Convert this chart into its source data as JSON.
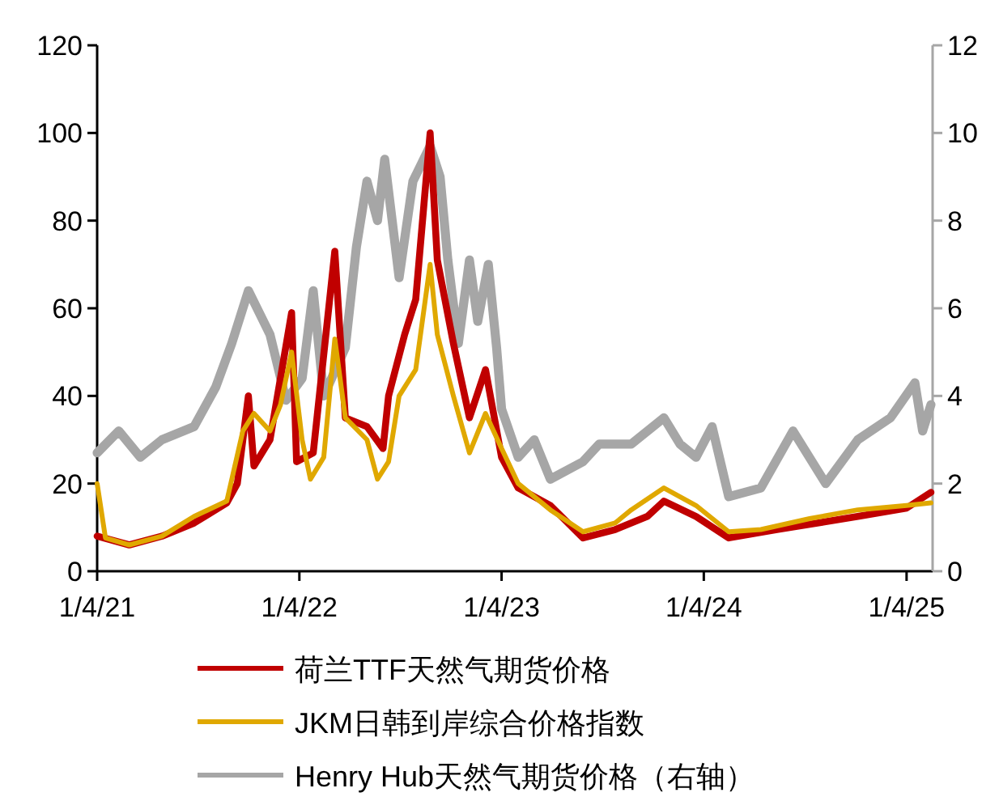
{
  "chart_data": {
    "type": "line",
    "xlim": [
      "2021-01-04",
      "2025-02-20"
    ],
    "xticks": [
      {
        "value": "2021-01-04",
        "label": "1/4/21"
      },
      {
        "value": "2022-01-04",
        "label": "1/4/22"
      },
      {
        "value": "2023-01-04",
        "label": "1/4/23"
      },
      {
        "value": "2024-01-04",
        "label": "1/4/24"
      },
      {
        "value": "2025-01-04",
        "label": "1/4/25"
      }
    ],
    "ylim": [
      0,
      120
    ],
    "yticks": [
      0,
      20,
      40,
      60,
      80,
      100,
      120
    ],
    "y2lim": [
      0,
      12
    ],
    "y2ticks": [
      0,
      2,
      4,
      6,
      8,
      10,
      12
    ],
    "grid": false,
    "legend": "bottom",
    "marker": "none",
    "line_style": "solid",
    "series": [
      {
        "name": "荷兰TTF天然气期货价格",
        "color": "#c00000",
        "x": [
          "2021-01-04",
          "2021-03-03",
          "2021-05-01",
          "2021-06-28",
          "2021-08-26",
          "2021-09-14",
          "2021-10-04",
          "2021-10-14",
          "2021-11-12",
          "2021-12-21",
          "2021-12-30",
          "2022-01-29",
          "2022-03-09",
          "2022-03-28",
          "2022-05-06",
          "2022-06-04",
          "2022-06-14",
          "2022-07-13",
          "2022-08-02",
          "2022-08-28",
          "2022-09-10",
          "2022-10-09",
          "2022-11-07",
          "2022-12-06",
          "2023-01-04",
          "2023-02-03",
          "2023-04-02",
          "2023-05-31",
          "2023-07-28",
          "2023-09-24",
          "2023-10-24",
          "2023-12-21",
          "2024-02-18",
          "2024-05-15",
          "2024-07-13",
          "2024-10-08",
          "2025-01-04",
          "2025-02-17"
        ],
        "values": [
          8,
          6,
          8,
          11,
          15.6,
          20,
          40,
          24,
          30,
          59,
          25,
          27,
          73,
          35,
          33,
          28,
          40,
          54,
          62,
          100,
          71,
          52,
          35,
          46,
          26,
          19,
          15,
          7.6,
          9.5,
          12.5,
          16,
          12.5,
          7.6,
          9.5,
          10.7,
          12.5,
          14.4,
          18
        ]
      },
      {
        "name": "JKM日韩到岸综合价格指数",
        "color": "#e0a800",
        "x": [
          "2021-01-04",
          "2021-01-19",
          "2021-03-03",
          "2021-05-01",
          "2021-06-28",
          "2021-08-26",
          "2021-09-24",
          "2021-10-14",
          "2021-11-12",
          "2021-12-01",
          "2021-12-21",
          "2022-01-09",
          "2022-01-24",
          "2022-02-17",
          "2022-03-09",
          "2022-03-28",
          "2022-05-06",
          "2022-05-25",
          "2022-06-14",
          "2022-07-03",
          "2022-08-02",
          "2022-08-28",
          "2022-09-10",
          "2022-10-09",
          "2022-11-07",
          "2022-12-06",
          "2023-01-04",
          "2023-02-03",
          "2023-04-02",
          "2023-05-31",
          "2023-07-28",
          "2023-08-26",
          "2023-10-24",
          "2023-12-21",
          "2024-02-18",
          "2024-04-16",
          "2024-07-13",
          "2024-10-08",
          "2025-01-04",
          "2025-02-17"
        ],
        "values": [
          20,
          7.6,
          6,
          8,
          12.5,
          16,
          32,
          36,
          32,
          38,
          50,
          30,
          21,
          26,
          53,
          35,
          30,
          21,
          25,
          40,
          46,
          70,
          54,
          40,
          27,
          36,
          28,
          20,
          14,
          9,
          11,
          14,
          19,
          15,
          9,
          9.5,
          12,
          14,
          15,
          15.6
        ]
      },
      {
        "name": "Henry Hub天然气期货价格（右轴）",
        "color": "#a6a6a6",
        "axis": "y2",
        "x": [
          "2021-01-04",
          "2021-02-12",
          "2021-03-23",
          "2021-05-01",
          "2021-06-28",
          "2021-08-06",
          "2021-09-04",
          "2021-10-04",
          "2021-11-12",
          "2021-12-11",
          "2022-01-09",
          "2022-01-29",
          "2022-02-17",
          "2022-03-28",
          "2022-04-17",
          "2022-05-06",
          "2022-05-25",
          "2022-06-07",
          "2022-07-03",
          "2022-07-28",
          "2022-08-28",
          "2022-09-15",
          "2022-09-29",
          "2022-10-18",
          "2022-11-07",
          "2022-11-22",
          "2022-12-11",
          "2022-12-26",
          "2023-01-04",
          "2023-02-03",
          "2023-03-04",
          "2023-04-02",
          "2023-05-31",
          "2023-06-29",
          "2023-08-26",
          "2023-10-24",
          "2023-11-22",
          "2023-12-21",
          "2024-01-19",
          "2024-02-18",
          "2024-04-16",
          "2024-06-13",
          "2024-08-11",
          "2024-10-08",
          "2024-12-06",
          "2025-01-19",
          "2025-02-02",
          "2025-02-17"
        ],
        "values": [
          2.7,
          3.2,
          2.6,
          3.0,
          3.3,
          4.2,
          5.2,
          6.4,
          5.4,
          3.9,
          4.4,
          6.4,
          4.0,
          5.1,
          7.4,
          8.9,
          8.0,
          9.4,
          6.7,
          8.9,
          9.7,
          9.0,
          7.1,
          5.2,
          7.1,
          5.7,
          7.0,
          5.1,
          3.7,
          2.6,
          3.0,
          2.1,
          2.5,
          2.9,
          2.9,
          3.5,
          2.9,
          2.6,
          3.3,
          1.7,
          1.9,
          3.2,
          2.0,
          3.0,
          3.5,
          4.3,
          3.2,
          3.8
        ]
      }
    ]
  }
}
